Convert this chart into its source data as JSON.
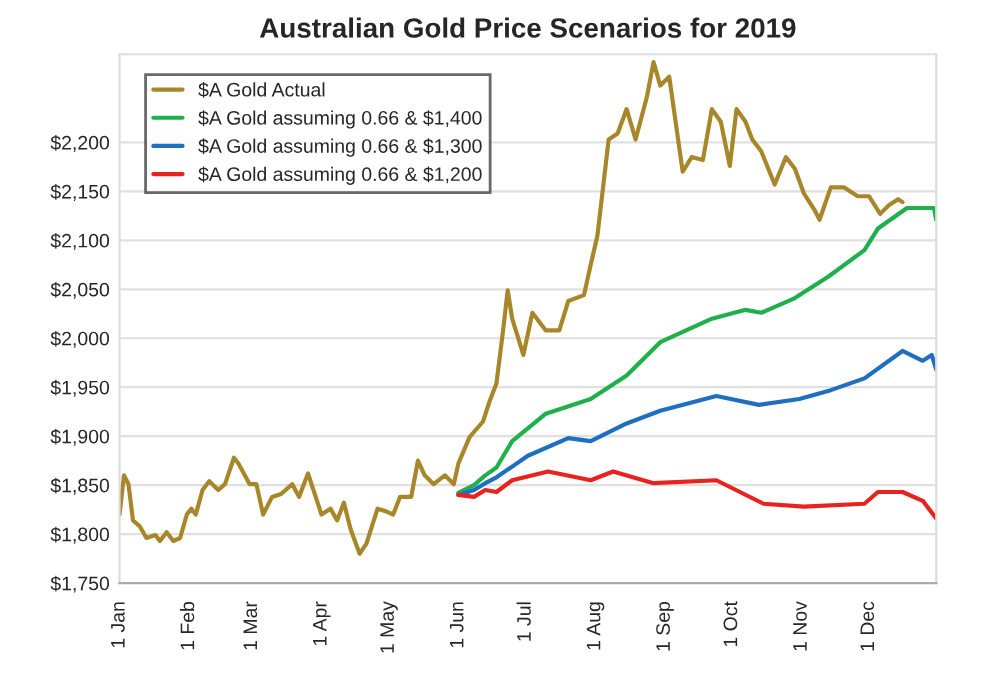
{
  "chart_data": {
    "type": "line",
    "title": "Australian Gold Price Scenarios for 2019",
    "xlim": [
      "2019-01-01",
      "2019-12-31"
    ],
    "xticks": [
      {
        "value": "2019-01-01",
        "label": "1 Jan"
      },
      {
        "value": "2019-02-01",
        "label": "1 Feb"
      },
      {
        "value": "2019-03-01",
        "label": "1 Mar"
      },
      {
        "value": "2019-04-01",
        "label": "1 Apr"
      },
      {
        "value": "2019-05-01",
        "label": "1 May"
      },
      {
        "value": "2019-06-01",
        "label": "1 Jun"
      },
      {
        "value": "2019-07-01",
        "label": "1 Jul"
      },
      {
        "value": "2019-08-01",
        "label": "1 Aug"
      },
      {
        "value": "2019-09-01",
        "label": "1 Sep"
      },
      {
        "value": "2019-10-01",
        "label": "1 Oct"
      },
      {
        "value": "2019-11-01",
        "label": "1 Nov"
      },
      {
        "value": "2019-12-01",
        "label": "1 Dec"
      }
    ],
    "ylim": [
      1750,
      2290
    ],
    "yticks": [
      {
        "value": 1750,
        "label": "$1,750"
      },
      {
        "value": 1800,
        "label": "$1,800"
      },
      {
        "value": 1850,
        "label": "$1,850"
      },
      {
        "value": 1900,
        "label": "$1,900"
      },
      {
        "value": 1950,
        "label": "$1,950"
      },
      {
        "value": 2000,
        "label": "$2,000"
      },
      {
        "value": 2050,
        "label": "$2,050"
      },
      {
        "value": 2100,
        "label": "$2,100"
      },
      {
        "value": 2150,
        "label": "$2,150"
      },
      {
        "value": 2200,
        "label": "$2,200"
      }
    ],
    "grid": "y",
    "legend": "top left",
    "marker": "none",
    "line_style": "solid",
    "series": [
      {
        "name": "$A Gold Actual",
        "color": "#a8862a",
        "x": [
          "2019-01-01",
          "2019-01-03",
          "2019-01-05",
          "2019-01-07",
          "2019-01-10",
          "2019-01-13",
          "2019-01-17",
          "2019-01-19",
          "2019-01-22",
          "2019-01-25",
          "2019-01-28",
          "2019-01-31",
          "2019-02-02",
          "2019-02-04",
          "2019-02-07",
          "2019-02-10",
          "2019-02-14",
          "2019-02-17",
          "2019-02-21",
          "2019-02-23",
          "2019-02-28",
          "2019-03-03",
          "2019-03-06",
          "2019-03-10",
          "2019-03-14",
          "2019-03-19",
          "2019-03-22",
          "2019-03-26",
          "2019-03-29",
          "2019-04-01",
          "2019-04-05",
          "2019-04-08",
          "2019-04-11",
          "2019-04-14",
          "2019-04-18",
          "2019-04-21",
          "2019-04-26",
          "2019-04-30",
          "2019-05-03",
          "2019-05-06",
          "2019-05-11",
          "2019-05-14",
          "2019-05-17",
          "2019-05-21",
          "2019-05-26",
          "2019-05-30",
          "2019-06-01",
          "2019-06-06",
          "2019-06-12",
          "2019-06-15",
          "2019-06-18",
          "2019-06-21",
          "2019-06-23",
          "2019-06-25",
          "2019-06-30",
          "2019-07-04",
          "2019-07-10",
          "2019-07-16",
          "2019-07-20",
          "2019-07-27",
          "2019-07-30",
          "2019-08-02",
          "2019-08-07",
          "2019-08-11",
          "2019-08-15",
          "2019-08-19",
          "2019-08-24",
          "2019-08-27",
          "2019-08-30",
          "2019-09-03",
          "2019-09-09",
          "2019-09-13",
          "2019-09-18",
          "2019-09-22",
          "2019-09-26",
          "2019-09-30",
          "2019-10-03",
          "2019-10-07",
          "2019-10-10",
          "2019-10-14",
          "2019-10-20",
          "2019-10-25",
          "2019-10-29",
          "2019-11-02",
          "2019-11-07",
          "2019-11-09",
          "2019-11-14",
          "2019-11-20",
          "2019-11-26",
          "2019-12-01",
          "2019-12-06",
          "2019-12-10",
          "2019-12-14",
          "2019-12-16"
        ],
        "values": [
          1820,
          1860,
          1851,
          1814,
          1808,
          1796,
          1799,
          1793,
          1802,
          1793,
          1796,
          1820,
          1826,
          1820,
          1845,
          1854,
          1845,
          1851,
          1878,
          1872,
          1851,
          1851,
          1820,
          1838,
          1841,
          1851,
          1838,
          1862,
          1841,
          1820,
          1826,
          1814,
          1832,
          1805,
          1780,
          1790,
          1826,
          1823,
          1820,
          1838,
          1838,
          1875,
          1860,
          1851,
          1860,
          1851,
          1872,
          1899,
          1915,
          1936,
          1954,
          2009,
          2049,
          2020,
          1983,
          2026,
          2008,
          2008,
          2038,
          2044,
          2075,
          2105,
          2203,
          2209,
          2234,
          2203,
          2246,
          2282,
          2258,
          2267,
          2170,
          2185,
          2182,
          2234,
          2221,
          2176,
          2234,
          2221,
          2203,
          2191,
          2157,
          2185,
          2173,
          2148,
          2130,
          2121,
          2154,
          2154,
          2145,
          2145,
          2127,
          2136,
          2142,
          2139
        ]
      },
      {
        "name": "$A Gold assuming 0.66 & $1,400",
        "color": "#1fb04b",
        "x": [
          "2019-06-01",
          "2019-06-08",
          "2019-06-13",
          "2019-06-18",
          "2019-06-25",
          "2019-07-10",
          "2019-07-30",
          "2019-08-15",
          "2019-08-30",
          "2019-09-22",
          "2019-10-07",
          "2019-10-14",
          "2019-10-29",
          "2019-11-13",
          "2019-11-29",
          "2019-12-05",
          "2019-12-18",
          "2019-12-30",
          "2019-12-31"
        ],
        "values": [
          1842,
          1850,
          1860,
          1868,
          1895,
          1923,
          1938,
          1962,
          1996,
          2020,
          2029,
          2026,
          2041,
          2063,
          2090,
          2112,
          2133,
          2133,
          2121
        ]
      },
      {
        "name": "$A Gold assuming 0.66 & $1,300",
        "color": "#1f6fc0",
        "x": [
          "2019-06-01",
          "2019-06-08",
          "2019-06-13",
          "2019-06-18",
          "2019-07-02",
          "2019-07-20",
          "2019-07-30",
          "2019-08-15",
          "2019-08-30",
          "2019-09-24",
          "2019-10-13",
          "2019-10-31",
          "2019-11-14",
          "2019-11-29",
          "2019-12-16",
          "2019-12-25",
          "2019-12-29",
          "2019-12-31"
        ],
        "values": [
          1840,
          1845,
          1852,
          1858,
          1880,
          1898,
          1895,
          1913,
          1926,
          1941,
          1932,
          1938,
          1947,
          1959,
          1987,
          1977,
          1983,
          1968
        ]
      },
      {
        "name": "$A Gold assuming 0.66 & $1,200",
        "color": "#e8231f",
        "x": [
          "2019-06-01",
          "2019-06-08",
          "2019-06-13",
          "2019-06-18",
          "2019-06-25",
          "2019-07-11",
          "2019-07-30",
          "2019-08-09",
          "2019-08-27",
          "2019-09-24",
          "2019-10-15",
          "2019-11-02",
          "2019-11-29",
          "2019-12-05",
          "2019-12-16",
          "2019-12-25",
          "2019-12-31"
        ],
        "values": [
          1840,
          1838,
          1845,
          1843,
          1855,
          1864,
          1855,
          1864,
          1852,
          1855,
          1831,
          1828,
          1831,
          1843,
          1843,
          1834,
          1816
        ]
      }
    ]
  }
}
